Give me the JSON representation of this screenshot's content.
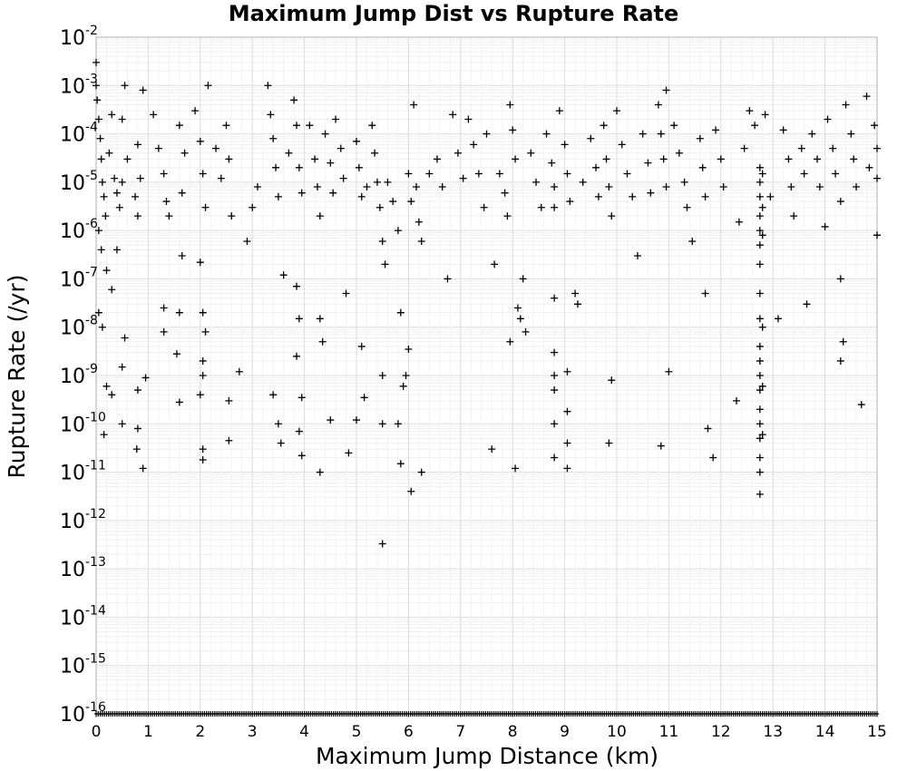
{
  "chart_data": {
    "type": "scatter",
    "title": "Maximum Jump Dist vs Rupture Rate",
    "xlabel": "Maximum Jump Distance (km)",
    "ylabel": "Rupture Rate (/yr)",
    "x_scale": "linear",
    "y_scale": "log",
    "xlim": [
      0,
      15
    ],
    "ylim": [
      1e-16,
      0.01
    ],
    "x_ticks": [
      "0",
      "1",
      "2",
      "3",
      "4",
      "5",
      "6",
      "7",
      "8",
      "9",
      "10",
      "11",
      "12",
      "13",
      "14",
      "15"
    ],
    "y_ticks": [
      {
        "base": "10",
        "exp": "-2"
      },
      {
        "base": "10",
        "exp": "-3"
      },
      {
        "base": "10",
        "exp": "-4"
      },
      {
        "base": "10",
        "exp": "-5"
      },
      {
        "base": "10",
        "exp": "-6"
      },
      {
        "base": "10",
        "exp": "-7"
      },
      {
        "base": "10",
        "exp": "-8"
      },
      {
        "base": "10",
        "exp": "-9"
      },
      {
        "base": "10",
        "exp": "-10"
      },
      {
        "base": "10",
        "exp": "-11"
      },
      {
        "base": "10",
        "exp": "-12"
      },
      {
        "base": "10",
        "exp": "-13"
      },
      {
        "base": "10",
        "exp": "-14"
      },
      {
        "base": "10",
        "exp": "-15"
      },
      {
        "base": "10",
        "exp": "-16"
      }
    ],
    "grid": true,
    "marker": "plus",
    "marker_color": "#000000",
    "series": [
      {
        "points": [
          [
            0.0,
            0.003
          ],
          [
            0.0,
            0.001
          ],
          [
            0.02,
            0.0005
          ],
          [
            0.05,
            0.0002
          ],
          [
            0.08,
            8e-05
          ],
          [
            0.1,
            3e-05
          ],
          [
            0.12,
            1e-05
          ],
          [
            0.15,
            5e-06
          ],
          [
            0.18,
            2e-06
          ],
          [
            0.05,
            1e-06
          ],
          [
            0.1,
            4e-07
          ],
          [
            0.2,
            1.5e-07
          ],
          [
            0.3,
            6e-08
          ],
          [
            0.12,
            1e-08
          ],
          [
            0.2,
            6e-10
          ],
          [
            0.3,
            4e-10
          ],
          [
            0.15,
            6e-11
          ],
          [
            0.05,
            2e-08
          ],
          [
            0.25,
            4e-05
          ],
          [
            0.35,
            1.2e-05
          ],
          [
            0.4,
            6e-06
          ],
          [
            0.45,
            3e-06
          ],
          [
            0.5,
            1e-05
          ],
          [
            0.3,
            0.00025
          ],
          [
            0.5,
            0.0002
          ],
          [
            0.55,
            0.001
          ],
          [
            0.6,
            3e-05
          ],
          [
            0.4,
            4e-07
          ],
          [
            0.55,
            6e-09
          ],
          [
            0.5,
            1.5e-09
          ],
          [
            0.5,
            1e-10
          ],
          [
            0.8,
            6e-05
          ],
          [
            0.9,
            0.0008
          ],
          [
            0.85,
            1.2e-05
          ],
          [
            0.75,
            5e-06
          ],
          [
            0.8,
            2e-06
          ],
          [
            0.95,
            9e-10
          ],
          [
            0.8,
            5e-10
          ],
          [
            0.8,
            8e-11
          ],
          [
            0.78,
            3e-11
          ],
          [
            0.9,
            1.2e-11
          ],
          [
            1.1,
            0.00025
          ],
          [
            1.2,
            5e-05
          ],
          [
            1.3,
            1.5e-05
          ],
          [
            1.35,
            4e-06
          ],
          [
            1.4,
            2e-06
          ],
          [
            1.3,
            2.5e-08
          ],
          [
            1.3,
            8e-09
          ],
          [
            1.6,
            0.00015
          ],
          [
            1.7,
            4e-05
          ],
          [
            1.65,
            6e-06
          ],
          [
            1.6,
            2e-08
          ],
          [
            1.55,
            2.8e-09
          ],
          [
            1.6,
            2.8e-10
          ],
          [
            1.65,
            3e-07
          ],
          [
            1.9,
            0.0003
          ],
          [
            2.0,
            7e-05
          ],
          [
            2.05,
            1.5e-05
          ],
          [
            2.1,
            3e-06
          ],
          [
            2.0,
            2.2e-07
          ],
          [
            2.05,
            2e-08
          ],
          [
            2.1,
            8e-09
          ],
          [
            2.05,
            2e-09
          ],
          [
            2.05,
            1e-09
          ],
          [
            2.0,
            4e-10
          ],
          [
            2.05,
            3e-11
          ],
          [
            2.05,
            1.8e-11
          ],
          [
            2.15,
            0.001
          ],
          [
            2.3,
            5e-05
          ],
          [
            2.4,
            1.2e-05
          ],
          [
            2.5,
            0.00015
          ],
          [
            2.55,
            3e-05
          ],
          [
            2.6,
            2e-06
          ],
          [
            2.55,
            4.5e-11
          ],
          [
            2.55,
            3e-10
          ],
          [
            2.75,
            1.2e-09
          ],
          [
            2.9,
            6e-07
          ],
          [
            3.0,
            3e-06
          ],
          [
            3.1,
            8e-06
          ],
          [
            3.3,
            0.001
          ],
          [
            3.35,
            0.00025
          ],
          [
            3.4,
            8e-05
          ],
          [
            3.45,
            2e-05
          ],
          [
            3.5,
            5e-06
          ],
          [
            3.4,
            4e-10
          ],
          [
            3.5,
            1e-10
          ],
          [
            3.55,
            4e-11
          ],
          [
            3.6,
            1.2e-07
          ],
          [
            3.7,
            4e-05
          ],
          [
            3.8,
            0.0005
          ],
          [
            3.85,
            0.00015
          ],
          [
            3.9,
            2e-05
          ],
          [
            3.95,
            6e-06
          ],
          [
            3.85,
            7e-08
          ],
          [
            3.9,
            1.5e-08
          ],
          [
            3.85,
            2.5e-09
          ],
          [
            3.95,
            3.5e-10
          ],
          [
            3.9,
            7e-11
          ],
          [
            3.95,
            2.2e-11
          ],
          [
            4.1,
            0.00015
          ],
          [
            4.2,
            3e-05
          ],
          [
            4.25,
            8e-06
          ],
          [
            4.3,
            2e-06
          ],
          [
            4.3,
            1.5e-08
          ],
          [
            4.35,
            5e-09
          ],
          [
            4.3,
            1e-11
          ],
          [
            4.4,
            0.0001
          ],
          [
            4.5,
            2.5e-05
          ],
          [
            4.55,
            6e-06
          ],
          [
            4.5,
            1.2e-10
          ],
          [
            4.6,
            0.0002
          ],
          [
            4.7,
            5e-05
          ],
          [
            4.75,
            1.2e-05
          ],
          [
            4.8,
            5e-08
          ],
          [
            4.85,
            2.5e-11
          ],
          [
            5.0,
            7e-05
          ],
          [
            5.05,
            2e-05
          ],
          [
            5.1,
            5e-06
          ],
          [
            5.0,
            1.2e-10
          ],
          [
            5.1,
            4e-09
          ],
          [
            5.15,
            3.5e-10
          ],
          [
            5.2,
            8e-06
          ],
          [
            5.3,
            0.00015
          ],
          [
            5.35,
            4e-05
          ],
          [
            5.4,
            1e-05
          ],
          [
            5.45,
            3e-06
          ],
          [
            5.5,
            6e-07
          ],
          [
            5.55,
            2e-07
          ],
          [
            5.5,
            1e-09
          ],
          [
            5.5,
            1e-10
          ],
          [
            5.5,
            3.3e-13
          ],
          [
            5.6,
            1e-05
          ],
          [
            5.7,
            4e-06
          ],
          [
            5.8,
            1e-06
          ],
          [
            5.85,
            2e-08
          ],
          [
            5.8,
            1e-10
          ],
          [
            5.85,
            1.5e-11
          ],
          [
            5.9,
            6e-10
          ],
          [
            5.95,
            1e-09
          ],
          [
            6.0,
            1.5e-05
          ],
          [
            6.05,
            4e-06
          ],
          [
            6.0,
            3.5e-09
          ],
          [
            6.05,
            4e-12
          ],
          [
            6.1,
            0.0004
          ],
          [
            6.15,
            8e-06
          ],
          [
            6.2,
            1.5e-06
          ],
          [
            6.25,
            6e-07
          ],
          [
            6.25,
            1e-11
          ],
          [
            6.4,
            1.5e-05
          ],
          [
            6.55,
            3e-05
          ],
          [
            6.65,
            8e-06
          ],
          [
            6.75,
            1e-07
          ],
          [
            6.85,
            0.00025
          ],
          [
            6.95,
            4e-05
          ],
          [
            7.05,
            1.2e-05
          ],
          [
            7.15,
            0.0002
          ],
          [
            7.25,
            6e-05
          ],
          [
            7.35,
            1.5e-05
          ],
          [
            7.45,
            3e-06
          ],
          [
            7.5,
            0.0001
          ],
          [
            7.6,
            3e-11
          ],
          [
            7.65,
            2e-07
          ],
          [
            7.75,
            1.5e-05
          ],
          [
            7.85,
            6e-06
          ],
          [
            7.9,
            2e-06
          ],
          [
            7.95,
            0.0004
          ],
          [
            8.0,
            0.00012
          ],
          [
            8.05,
            3e-05
          ],
          [
            8.1,
            2.5e-08
          ],
          [
            8.05,
            1.2e-11
          ],
          [
            7.95,
            5e-09
          ],
          [
            8.15,
            1.5e-08
          ],
          [
            8.2,
            1e-07
          ],
          [
            8.25,
            8e-09
          ],
          [
            8.35,
            4e-05
          ],
          [
            8.45,
            1e-05
          ],
          [
            8.55,
            3e-06
          ],
          [
            8.65,
            0.0001
          ],
          [
            8.75,
            2.5e-05
          ],
          [
            8.8,
            8e-06
          ],
          [
            8.8,
            3e-06
          ],
          [
            8.8,
            4e-08
          ],
          [
            8.8,
            3e-09
          ],
          [
            8.8,
            1e-09
          ],
          [
            8.8,
            5e-10
          ],
          [
            8.8,
            1e-10
          ],
          [
            8.8,
            2e-11
          ],
          [
            8.9,
            0.0003
          ],
          [
            9.0,
            6e-05
          ],
          [
            9.05,
            1.5e-05
          ],
          [
            9.1,
            4e-06
          ],
          [
            9.05,
            1.2e-09
          ],
          [
            9.05,
            1.8e-10
          ],
          [
            9.05,
            4e-11
          ],
          [
            9.05,
            1.2e-11
          ],
          [
            9.2,
            5e-08
          ],
          [
            9.25,
            3e-08
          ],
          [
            9.35,
            1e-05
          ],
          [
            9.5,
            8e-05
          ],
          [
            9.6,
            2e-05
          ],
          [
            9.65,
            5e-06
          ],
          [
            9.75,
            0.00015
          ],
          [
            9.8,
            3e-05
          ],
          [
            9.85,
            8e-06
          ],
          [
            9.9,
            2e-06
          ],
          [
            9.9,
            8e-10
          ],
          [
            9.85,
            4e-11
          ],
          [
            10.0,
            0.0003
          ],
          [
            10.1,
            6e-05
          ],
          [
            10.2,
            1.5e-05
          ],
          [
            10.3,
            5e-06
          ],
          [
            10.4,
            3e-07
          ],
          [
            10.5,
            0.0001
          ],
          [
            10.6,
            2.5e-05
          ],
          [
            10.65,
            6e-06
          ],
          [
            10.8,
            0.0004
          ],
          [
            10.85,
            0.0001
          ],
          [
            10.9,
            3e-05
          ],
          [
            10.95,
            8e-06
          ],
          [
            10.95,
            0.0008
          ],
          [
            11.0,
            1.2e-09
          ],
          [
            10.85,
            3.5e-11
          ],
          [
            11.1,
            0.00015
          ],
          [
            11.2,
            4e-05
          ],
          [
            11.3,
            1e-05
          ],
          [
            11.35,
            3e-06
          ],
          [
            11.45,
            6e-07
          ],
          [
            11.6,
            8e-05
          ],
          [
            11.65,
            2e-05
          ],
          [
            11.7,
            5e-06
          ],
          [
            11.7,
            5e-08
          ],
          [
            11.75,
            8e-11
          ],
          [
            11.85,
            2e-11
          ],
          [
            11.9,
            0.00012
          ],
          [
            12.0,
            3e-05
          ],
          [
            12.05,
            8e-06
          ],
          [
            12.3,
            3e-10
          ],
          [
            12.35,
            1.5e-06
          ],
          [
            12.45,
            5e-05
          ],
          [
            12.55,
            0.0003
          ],
          [
            12.65,
            0.00015
          ],
          [
            12.75,
            2e-05
          ],
          [
            12.75,
            1e-05
          ],
          [
            12.75,
            5e-06
          ],
          [
            12.75,
            2e-06
          ],
          [
            12.75,
            1e-06
          ],
          [
            12.75,
            5e-07
          ],
          [
            12.75,
            2e-07
          ],
          [
            12.75,
            5e-08
          ],
          [
            12.75,
            1.5e-08
          ],
          [
            12.75,
            4e-09
          ],
          [
            12.75,
            2e-09
          ],
          [
            12.75,
            1e-09
          ],
          [
            12.75,
            5e-10
          ],
          [
            12.75,
            2e-10
          ],
          [
            12.75,
            1e-10
          ],
          [
            12.75,
            5e-11
          ],
          [
            12.75,
            2e-11
          ],
          [
            12.75,
            1e-11
          ],
          [
            12.75,
            3.5e-12
          ],
          [
            12.8,
            1.5e-05
          ],
          [
            12.8,
            3e-06
          ],
          [
            12.8,
            8e-07
          ],
          [
            12.8,
            1e-08
          ],
          [
            12.8,
            6e-10
          ],
          [
            12.8,
            6e-11
          ],
          [
            12.85,
            0.00025
          ],
          [
            12.95,
            5e-06
          ],
          [
            13.1,
            1.5e-08
          ],
          [
            13.2,
            0.00012
          ],
          [
            13.3,
            3e-05
          ],
          [
            13.35,
            8e-06
          ],
          [
            13.4,
            2e-06
          ],
          [
            13.55,
            5e-05
          ],
          [
            13.6,
            1.5e-05
          ],
          [
            13.65,
            3e-08
          ],
          [
            13.75,
            0.0001
          ],
          [
            13.85,
            3e-05
          ],
          [
            13.9,
            8e-06
          ],
          [
            14.0,
            1.2e-06
          ],
          [
            14.05,
            0.0002
          ],
          [
            14.15,
            5e-05
          ],
          [
            14.2,
            1.5e-05
          ],
          [
            14.3,
            4e-06
          ],
          [
            14.3,
            1e-07
          ],
          [
            14.35,
            5e-09
          ],
          [
            14.3,
            2e-09
          ],
          [
            14.4,
            0.0004
          ],
          [
            14.5,
            0.0001
          ],
          [
            14.55,
            3e-05
          ],
          [
            14.6,
            8e-06
          ],
          [
            14.7,
            2.5e-10
          ],
          [
            14.8,
            0.0006
          ],
          [
            14.85,
            2e-05
          ],
          [
            14.95,
            0.00015
          ],
          [
            15.0,
            8e-07
          ],
          [
            15.0,
            5e-05
          ],
          [
            15.0,
            1.2e-05
          ]
        ]
      }
    ],
    "floor_points": {
      "y": 1e-16,
      "x_range": [
        0,
        15
      ],
      "note": ""
    }
  }
}
